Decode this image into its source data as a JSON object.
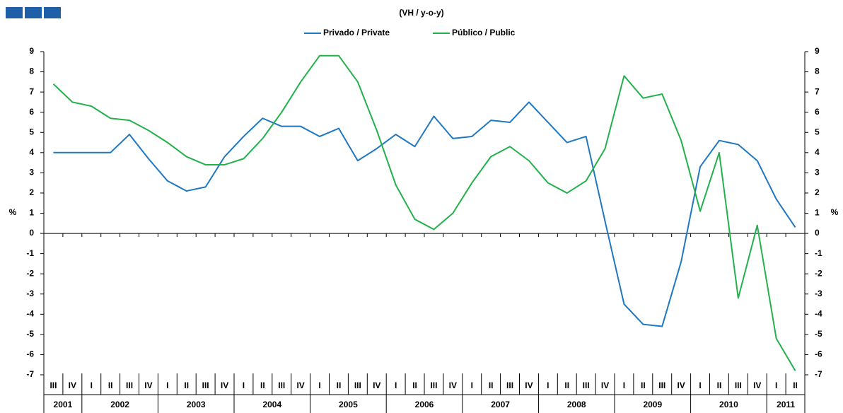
{
  "chart_data": {
    "type": "line",
    "title": "(VH / y-o-y)",
    "y_label": "%",
    "categories": [
      "III",
      "IV",
      "I",
      "II",
      "III",
      "IV",
      "I",
      "II",
      "III",
      "IV",
      "I",
      "II",
      "III",
      "IV",
      "I",
      "II",
      "III",
      "IV",
      "I",
      "II",
      "III",
      "IV",
      "I",
      "II",
      "III",
      "IV",
      "I",
      "II",
      "III",
      "IV",
      "I",
      "II",
      "III",
      "IV",
      "I",
      "II",
      "III",
      "IV",
      "I",
      "II"
    ],
    "years": [
      "2001",
      "2002",
      "2003",
      "2004",
      "2005",
      "2006",
      "2007",
      "2008",
      "2009",
      "2010",
      "2011"
    ],
    "series": [
      {
        "name": "Privado / Private",
        "color": "#1f78c1",
        "values": [
          4.0,
          4.0,
          4.0,
          4.0,
          4.9,
          3.7,
          2.6,
          2.1,
          2.3,
          3.8,
          4.8,
          5.7,
          5.3,
          5.3,
          4.8,
          5.2,
          3.6,
          4.2,
          4.9,
          4.3,
          5.8,
          4.7,
          4.8,
          5.6,
          5.5,
          6.5,
          5.5,
          4.5,
          4.8,
          0.6,
          -3.5,
          -4.5,
          -4.6,
          -1.4,
          3.3,
          4.6,
          4.4,
          3.6,
          1.7,
          0.3
        ]
      },
      {
        "name": "Público / Public",
        "color": "#22b14c",
        "values": [
          7.4,
          6.5,
          6.3,
          5.7,
          5.6,
          5.1,
          4.5,
          3.8,
          3.4,
          3.4,
          3.7,
          4.7,
          6.0,
          7.5,
          8.8,
          8.8,
          7.5,
          5.1,
          2.4,
          0.7,
          0.2,
          1.0,
          2.5,
          3.8,
          4.3,
          3.6,
          2.5,
          2.0,
          2.6,
          4.2,
          7.8,
          6.7,
          6.9,
          4.6,
          1.1,
          4.0,
          -3.2,
          0.4,
          -5.2,
          -6.8
        ]
      }
    ],
    "ylim": [
      -7,
      9
    ],
    "yticks": [
      -7,
      -6,
      -5,
      -4,
      -3,
      -2,
      -1,
      0,
      1,
      2,
      3,
      4,
      5,
      6,
      7,
      8,
      9
    ]
  }
}
